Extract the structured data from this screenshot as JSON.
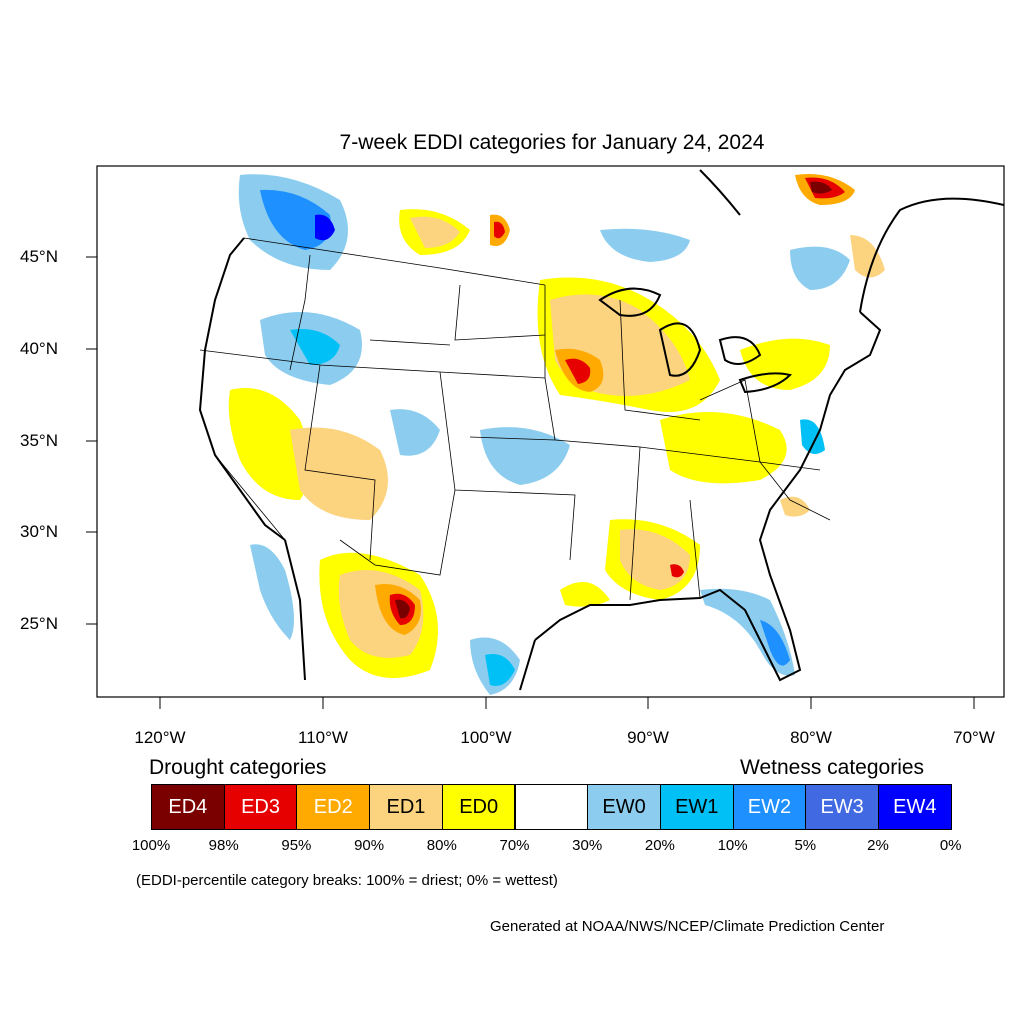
{
  "title": "7-week EDDI categories for January 24, 2024",
  "lat_labels": [
    "45°N",
    "40°N",
    "35°N",
    "30°N",
    "25°N"
  ],
  "lon_labels": [
    "120°W",
    "110°W",
    "100°W",
    "90°W",
    "80°W",
    "70°W"
  ],
  "legend": {
    "drought_heading": "Drought categories",
    "wetness_heading": "Wetness categories",
    "categories": [
      {
        "label": "ED4",
        "color": "#7a0000",
        "text_color": "#ffffff"
      },
      {
        "label": "ED3",
        "color": "#e60000",
        "text_color": "#ffffff"
      },
      {
        "label": "ED2",
        "color": "#ffaa00",
        "text_color": "#ffffff"
      },
      {
        "label": "ED1",
        "color": "#fcd37f",
        "text_color": "#000000"
      },
      {
        "label": "ED0",
        "color": "#ffff00",
        "text_color": "#000000"
      },
      {
        "label": "",
        "color": "#ffffff",
        "text_color": "#000000"
      },
      {
        "label": "EW0",
        "color": "#8ccdef",
        "text_color": "#000000"
      },
      {
        "label": "EW1",
        "color": "#00c0f5",
        "text_color": "#000000"
      },
      {
        "label": "EW2",
        "color": "#1e90ff",
        "text_color": "#ffffff"
      },
      {
        "label": "EW3",
        "color": "#4169e1",
        "text_color": "#ffffff"
      },
      {
        "label": "EW4",
        "color": "#0000ff",
        "text_color": "#ffffff"
      }
    ],
    "breaks": [
      "100%",
      "98%",
      "95%",
      "90%",
      "80%",
      "70%",
      "30%",
      "20%",
      "10%",
      "5%",
      "2%",
      "0%"
    ]
  },
  "note": "(EDDI-percentile category breaks: 100% = driest; 0% = wettest)",
  "credit": "Generated at NOAA/NWS/NCEP/Climate Prediction Center"
}
